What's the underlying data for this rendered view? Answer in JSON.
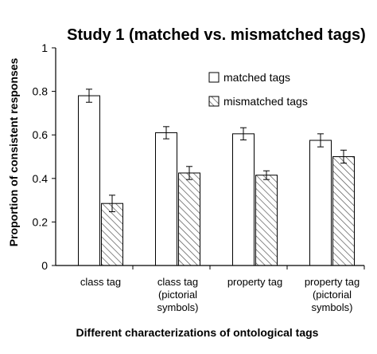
{
  "chart_data": {
    "type": "bar",
    "title": "Study 1 (matched vs. mismatched tags)",
    "xlabel": "Different characterizations of ontological tags",
    "ylabel": "Proportion of consistent responses",
    "ylim": [
      0,
      1
    ],
    "yticks": [
      "0",
      "0.2",
      "0.4",
      "0.6",
      "0.8",
      "1"
    ],
    "categories": [
      [
        "class tag"
      ],
      [
        "class tag",
        "(pictorial",
        "symbols)"
      ],
      [
        "property tag"
      ],
      [
        "property tag",
        "(pictorial",
        "symbols)"
      ]
    ],
    "series": [
      {
        "name": "matched tags",
        "fill": "white",
        "values": [
          0.78,
          0.61,
          0.605,
          0.575
        ],
        "errors": [
          0.03,
          0.028,
          0.028,
          0.03
        ]
      },
      {
        "name": "mismatched tags",
        "fill": "hatched",
        "values": [
          0.285,
          0.425,
          0.415,
          0.5
        ],
        "errors": [
          0.038,
          0.03,
          0.02,
          0.03
        ]
      }
    ],
    "legend_position": "top-right",
    "grid": false
  }
}
